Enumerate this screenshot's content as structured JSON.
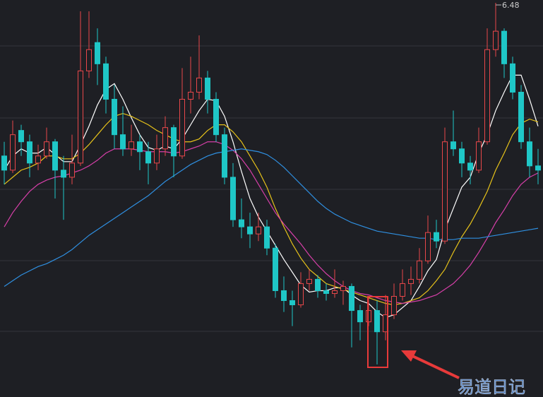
{
  "chart_data": {
    "type": "candlestick",
    "ylim": [
      3.7,
      6.5
    ],
    "up_color": "#e8474a",
    "down_color": "#1fc7c7",
    "open": [
      5.4,
      5.3,
      5.58,
      5.5,
      5.35,
      5.4,
      5.5,
      5.3,
      5.25,
      5.35,
      6.0,
      6.2,
      6.05,
      5.8,
      5.55,
      5.45,
      5.5,
      5.43,
      5.35,
      5.45,
      5.6,
      5.4,
      5.8,
      5.85,
      5.95,
      5.8,
      5.55,
      5.25,
      4.95,
      4.9,
      4.85,
      4.9,
      4.75,
      4.45,
      4.38,
      4.35,
      4.5,
      4.53,
      4.45,
      4.43,
      4.45,
      4.48,
      4.31,
      4.23,
      4.31,
      4.16,
      4.28,
      4.41,
      4.5,
      4.53,
      4.66,
      4.86,
      4.8,
      5.5,
      5.45,
      5.35,
      5.3,
      5.5,
      6.15,
      6.28,
      6.05,
      5.85,
      5.5,
      5.33
    ],
    "high": [
      5.5,
      5.65,
      5.62,
      5.55,
      5.48,
      5.6,
      5.52,
      5.4,
      5.55,
      6.42,
      6.42,
      6.3,
      6.1,
      5.9,
      5.75,
      5.62,
      5.55,
      5.5,
      5.55,
      5.68,
      5.62,
      6.02,
      6.1,
      6.25,
      6.0,
      5.85,
      5.6,
      5.35,
      5.1,
      5.0,
      5.0,
      4.95,
      4.78,
      4.55,
      4.45,
      4.58,
      4.6,
      4.56,
      4.5,
      4.6,
      4.52,
      4.5,
      4.35,
      4.4,
      4.38,
      4.42,
      4.5,
      4.6,
      4.62,
      4.75,
      4.98,
      4.95,
      5.6,
      5.72,
      5.5,
      5.4,
      5.6,
      6.3,
      6.48,
      6.3,
      6.1,
      5.9,
      5.6,
      5.45
    ],
    "low": [
      5.2,
      5.28,
      5.4,
      5.25,
      5.3,
      5.38,
      5.1,
      4.95,
      5.2,
      5.33,
      5.95,
      5.9,
      5.7,
      5.45,
      5.4,
      5.4,
      5.3,
      5.2,
      5.3,
      5.4,
      5.25,
      5.38,
      5.7,
      5.8,
      5.7,
      5.5,
      5.2,
      4.9,
      4.82,
      4.75,
      4.8,
      4.7,
      4.4,
      4.3,
      4.2,
      4.33,
      4.45,
      4.4,
      4.38,
      4.4,
      4.35,
      4.05,
      4.1,
      4.2,
      3.93,
      4.1,
      4.25,
      4.38,
      4.42,
      4.5,
      4.64,
      4.75,
      4.78,
      5.4,
      5.25,
      5.2,
      5.28,
      5.48,
      6.1,
      5.95,
      5.8,
      5.45,
      5.25,
      5.2
    ],
    "close": [
      5.3,
      5.55,
      5.5,
      5.35,
      5.4,
      5.5,
      5.3,
      5.25,
      5.35,
      6.0,
      6.15,
      6.05,
      5.8,
      5.55,
      5.45,
      5.5,
      5.43,
      5.35,
      5.45,
      5.6,
      5.4,
      5.8,
      5.85,
      5.95,
      5.8,
      5.55,
      5.25,
      4.95,
      4.9,
      4.85,
      4.9,
      4.75,
      4.45,
      4.38,
      4.35,
      4.5,
      4.53,
      4.45,
      4.43,
      4.45,
      4.48,
      4.31,
      4.23,
      4.31,
      4.16,
      4.28,
      4.41,
      4.5,
      4.53,
      4.66,
      4.86,
      4.8,
      5.5,
      5.45,
      5.35,
      5.3,
      5.5,
      6.15,
      6.28,
      6.05,
      5.85,
      5.5,
      5.33,
      5.3
    ],
    "series": [
      {
        "color": "#ffffff",
        "values": [
          5.3,
          5.4,
          5.45,
          5.42,
          5.42,
          5.46,
          5.41,
          5.36,
          5.36,
          5.48,
          5.61,
          5.76,
          5.87,
          5.91,
          5.8,
          5.67,
          5.55,
          5.46,
          5.44,
          5.47,
          5.45,
          5.52,
          5.62,
          5.72,
          5.8,
          5.79,
          5.68,
          5.5,
          5.29,
          5.1,
          4.97,
          4.87,
          4.77,
          4.67,
          4.58,
          4.49,
          4.44,
          4.45,
          4.45,
          4.47,
          4.47,
          4.42,
          4.38,
          4.36,
          4.3,
          4.26,
          4.28,
          4.33,
          4.38,
          4.48,
          4.59,
          4.67,
          4.88,
          5.03,
          5.18,
          5.25,
          5.42,
          5.55,
          5.72,
          5.85,
          5.97,
          5.97,
          5.8,
          5.61
        ]
      },
      {
        "color": "#e6c21a",
        "values": [
          5.2,
          5.25,
          5.3,
          5.32,
          5.35,
          5.4,
          5.4,
          5.38,
          5.38,
          5.42,
          5.48,
          5.55,
          5.62,
          5.68,
          5.7,
          5.68,
          5.65,
          5.62,
          5.58,
          5.55,
          5.52,
          5.5,
          5.5,
          5.52,
          5.58,
          5.62,
          5.62,
          5.57,
          5.5,
          5.4,
          5.3,
          5.18,
          5.03,
          4.9,
          4.78,
          4.68,
          4.6,
          4.55,
          4.5,
          4.48,
          4.46,
          4.44,
          4.42,
          4.4,
          4.38,
          4.36,
          4.35,
          4.36,
          4.38,
          4.4,
          4.45,
          4.52,
          4.6,
          4.72,
          4.83,
          4.92,
          5.03,
          5.15,
          5.3,
          5.42,
          5.55,
          5.63,
          5.66,
          5.64
        ]
      },
      {
        "color": "#d63fa8",
        "values": [
          4.9,
          5.0,
          5.08,
          5.15,
          5.2,
          5.23,
          5.25,
          5.26,
          5.28,
          5.3,
          5.33,
          5.37,
          5.42,
          5.45,
          5.45,
          5.45,
          5.44,
          5.43,
          5.43,
          5.43,
          5.42,
          5.43,
          5.45,
          5.47,
          5.5,
          5.5,
          5.48,
          5.44,
          5.38,
          5.3,
          5.2,
          5.1,
          5.0,
          4.92,
          4.85,
          4.78,
          4.7,
          4.63,
          4.57,
          4.52,
          4.48,
          4.45,
          4.43,
          4.42,
          4.4,
          4.38,
          4.37,
          4.36,
          4.37,
          4.38,
          4.4,
          4.42,
          4.46,
          4.5,
          4.56,
          4.63,
          4.72,
          4.82,
          4.93,
          5.02,
          5.12,
          5.2,
          5.25,
          5.28
        ]
      },
      {
        "color": "#2f8fe0",
        "values": [
          4.48,
          4.52,
          4.56,
          4.59,
          4.62,
          4.64,
          4.67,
          4.7,
          4.74,
          4.79,
          4.84,
          4.88,
          4.92,
          4.96,
          5.0,
          5.04,
          5.08,
          5.12,
          5.17,
          5.22,
          5.26,
          5.3,
          5.34,
          5.37,
          5.4,
          5.42,
          5.43,
          5.44,
          5.45,
          5.44,
          5.43,
          5.41,
          5.37,
          5.32,
          5.26,
          5.2,
          5.14,
          5.08,
          5.03,
          4.99,
          4.96,
          4.93,
          4.91,
          4.89,
          4.87,
          4.86,
          4.85,
          4.84,
          4.83,
          4.82,
          4.82,
          4.81,
          4.81,
          4.81,
          4.82,
          4.82,
          4.82,
          4.83,
          4.84,
          4.85,
          4.86,
          4.87,
          4.88,
          4.89
        ]
      }
    ],
    "watermark": "易道日记"
  }
}
